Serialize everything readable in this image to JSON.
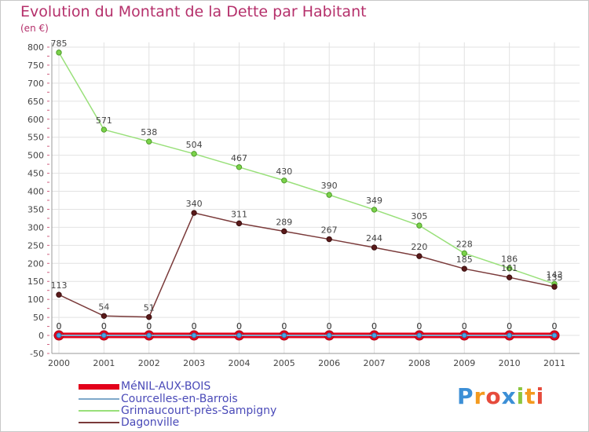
{
  "title": "Evolution du Montant de la Dette par Habitant",
  "unit": "(en €)",
  "logo": "Proxiti",
  "chart_data": {
    "type": "line",
    "title": "Evolution du Montant de la Dette par Habitant",
    "ylabel": "(en €)",
    "xlabel": "",
    "ylim": [
      -50,
      800
    ],
    "yticks": [
      -50,
      0,
      50,
      100,
      150,
      200,
      250,
      300,
      350,
      400,
      450,
      500,
      550,
      600,
      650,
      700,
      750,
      800
    ],
    "x": [
      "2000",
      "2001",
      "2002",
      "2003",
      "2004",
      "2005",
      "2006",
      "2007",
      "2008",
      "2009",
      "2010",
      "2011"
    ],
    "grid": true,
    "series": [
      {
        "name": "MéNIL-AUX-BOIS",
        "color": "#e3001b",
        "values": [
          0,
          0,
          0,
          0,
          0,
          0,
          0,
          0,
          0,
          0,
          0,
          0
        ]
      },
      {
        "name": "Courcelles-en-Barrois",
        "color": "#7fa8c9",
        "values": [
          0,
          0,
          0,
          0,
          0,
          0,
          0,
          0,
          0,
          0,
          0,
          0
        ]
      },
      {
        "name": "Grimaucourt-près-Sampigny",
        "color": "#99e07a",
        "values": [
          785,
          571,
          538,
          504,
          467,
          430,
          390,
          349,
          305,
          228,
          186,
          143
        ]
      },
      {
        "name": "Dagonville",
        "color": "#7a3a3a",
        "values": [
          113,
          54,
          51,
          340,
          311,
          289,
          267,
          244,
          220,
          185,
          161,
          135
        ]
      }
    ]
  }
}
